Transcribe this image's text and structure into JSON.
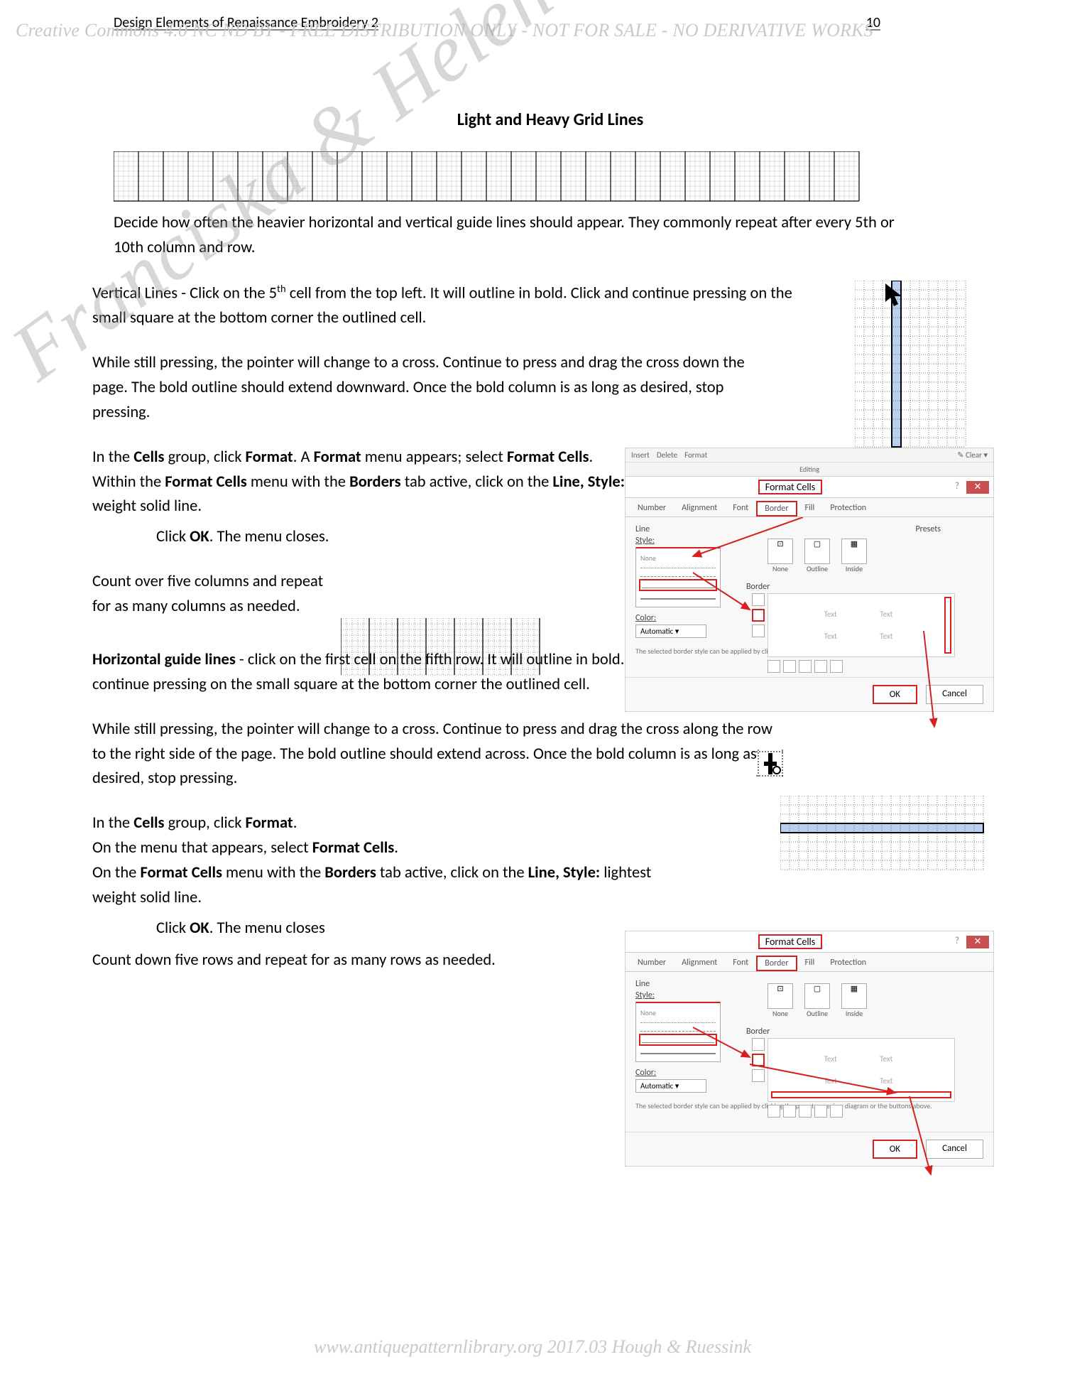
{
  "header": {
    "title": "Design Elements of Renaissance Embroidery 2",
    "page_num": "10"
  },
  "license_line": "Creative Commons 4.0 NC ND BY - FREE DISTRIBUTION ONLY - NOT FOR SALE - NO DERIVATIVE WORKS",
  "section_title": "Light and Heavy Grid Lines",
  "p1": "Decide how often the heavier horizontal and vertical guide lines should appear. They commonly repeat after every 5th or 10th column and row.",
  "p2_a": "Vertical Lines - Click on the 5",
  "p2_sup": "th",
  "p2_b": " cell from the top left. It will outline in bold. Click and continue pressing on the small square at the bottom corner the outlined cell.",
  "p3": "While still pressing, the pointer will change to a cross. Continue to press and drag the cross down the page. The bold outline should extend downward. Once the bold column is as long as desired, stop pressing.",
  "p4_a": "In the ",
  "p4_b": "Cells",
  "p4_c": " group, click ",
  "p4_d": "Format",
  "p4_e": ". A ",
  "p4_f": "Format",
  "p4_g": " menu appears; select ",
  "p4_h": "Format Cells",
  "p4_i": ".",
  "p5_a": "Within the ",
  "p5_b": "Format Cells",
  "p5_c": " menu with the ",
  "p5_d": "Borders",
  "p5_e": " tab active, click on the ",
  "p5_f": "Line, Style:",
  "p5_g": " lightest weight solid line.",
  "p6_a": "Click ",
  "p6_b": "OK",
  "p6_c": ". The menu closes.",
  "p7": "Count over five columns and repeat for as many columns as needed.",
  "p8_a": "Horizontal guide lines",
  "p8_b": " - click on the first cell on the fifth row. It will outline in bold. Click and continue pressing on the small square at the bottom corner the outlined cell.",
  "p9": "While still pressing, the pointer will change to a cross. Continue to press and drag the cross along the row to the right side of the page. The bold outline should extend across. Once the bold column is as long as desired, stop pressing.",
  "p10_a": "In the ",
  "p10_b": "Cells",
  "p10_c": " group, click ",
  "p10_d": "Format",
  "p10_e": ".",
  "p11_a": "On the menu that appears, select ",
  "p11_b": "Format Cells",
  "p11_c": ".",
  "p12_a": "On the ",
  "p12_b": "Format Cells",
  "p12_c": " menu with the ",
  "p12_d": "Borders",
  "p12_e": " tab active, click on the ",
  "p12_f": "Line, Style:",
  "p12_g": " lightest weight solid line.",
  "p13_a": "Click ",
  "p13_b": "OK",
  "p13_c": ". The menu closes",
  "p14": "Count down five rows and repeat for as many rows as needed.",
  "watermark": "Franciska & Helen",
  "footer": "www.antiquepatternlibrary.org 2017.03 Hough & Ruessink",
  "dialog": {
    "title": "Format Cells",
    "tabs": [
      "Number",
      "Alignment",
      "Font",
      "Border",
      "Fill",
      "Protection"
    ],
    "active_tab": "Border",
    "line_label": "Line",
    "style_label": "Style:",
    "style_none": "None",
    "color_label": "Color:",
    "color_value": "Automatic",
    "presets_label": "Presets",
    "preset_none": "None",
    "preset_outline": "Outline",
    "preset_inside": "Inside",
    "border_label": "Border",
    "preview_text": "Text",
    "hint": "The selected border style can be applied by clicking the presets, preview diagram or the buttons above.",
    "ok": "OK",
    "cancel": "Cancel"
  },
  "ribbon": {
    "insert": "Insert",
    "delete": "Delete",
    "format": "Format",
    "clear": "Clear",
    "editing": "Editing"
  },
  "grids": {
    "strip": {
      "cols_major": 30,
      "rows": 5,
      "sub": 5,
      "cell": 7
    },
    "vert_sel": {
      "cols": 12,
      "rows": 18,
      "cell": 13,
      "sel_col": 5
    },
    "mid": {
      "cols_major": 7,
      "sub": 5,
      "rows": 6,
      "cell": 8
    },
    "horiz_sel": {
      "cols": 22,
      "rows": 8,
      "cell": 13,
      "sel_row": 4
    }
  },
  "colors": {
    "highlight": "#d62020",
    "grid_light": "#bfbfbf",
    "grid_dark": "#000000",
    "sel_fill": "#b8d0f0"
  }
}
